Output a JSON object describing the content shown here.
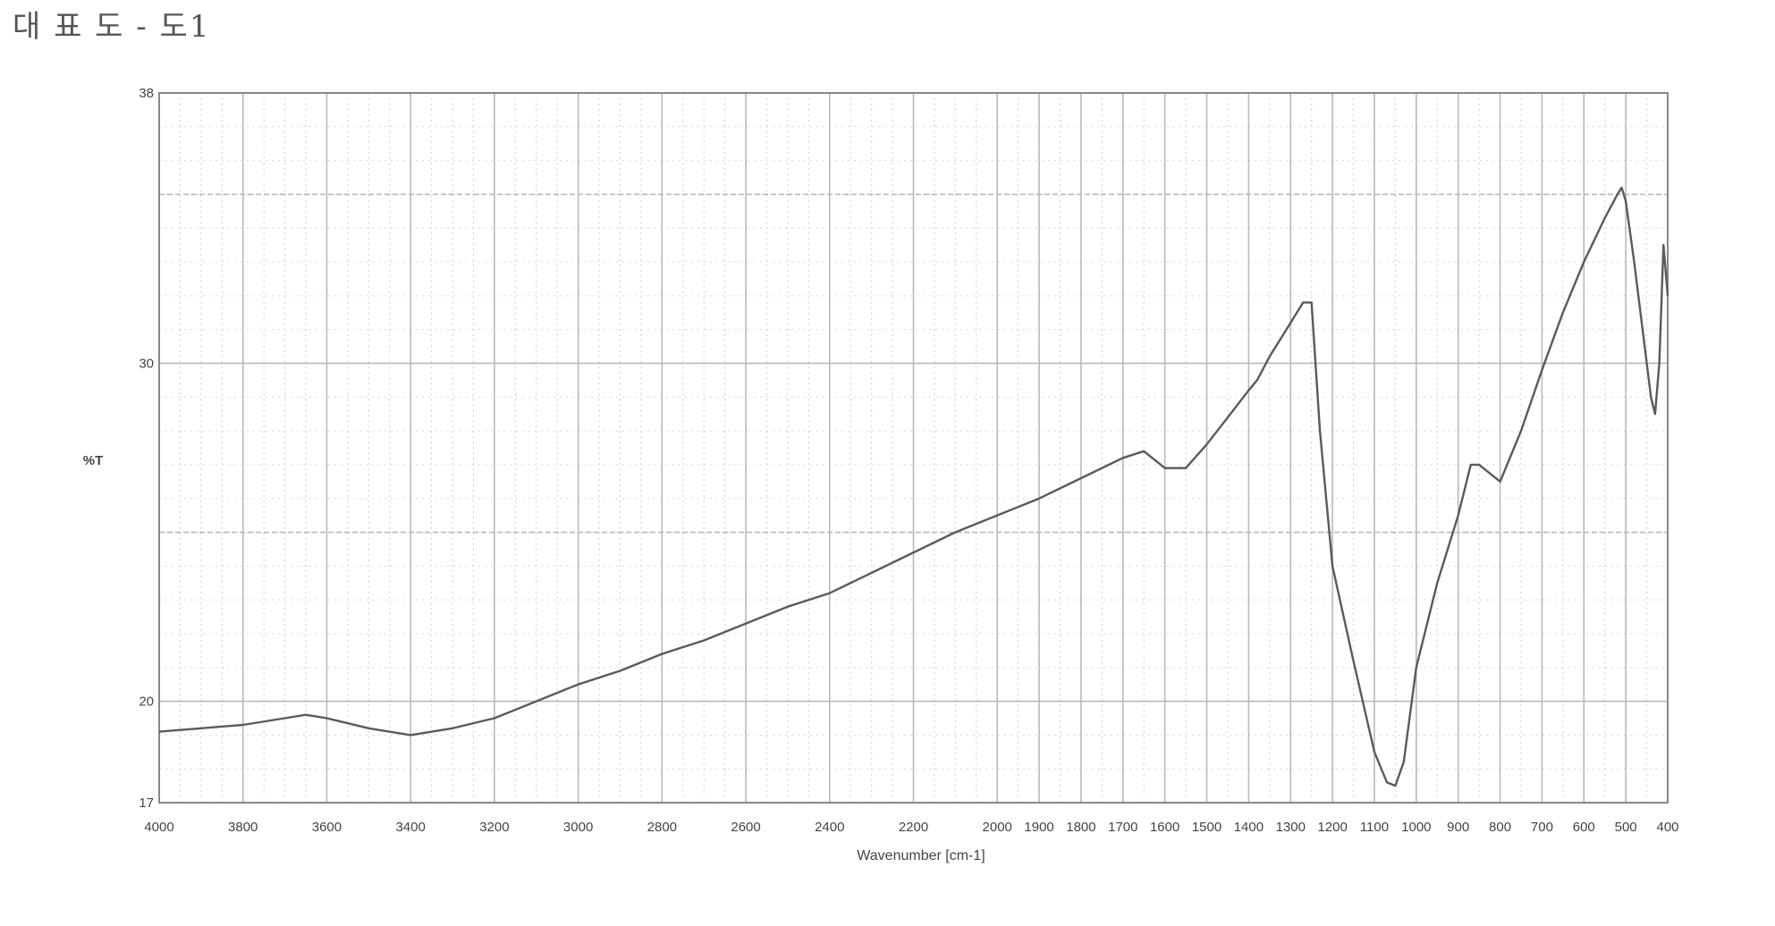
{
  "figure": {
    "title": "대 표 도 - 도1"
  },
  "chart_data": {
    "type": "line",
    "title": "",
    "xlabel": "Wavenumber [cm-1]",
    "ylabel": "%T",
    "x_ticks": [
      4000,
      3800,
      3600,
      3400,
      3200,
      3000,
      2800,
      2600,
      2400,
      2200,
      2000,
      1900,
      1800,
      1700,
      1600,
      1500,
      1400,
      1300,
      1200,
      1100,
      1000,
      900,
      800,
      700,
      600,
      500,
      400
    ],
    "y_ticks": [
      17,
      20,
      30,
      38
    ],
    "ylim": [
      17,
      38
    ],
    "x_axis": "reversed, piecewise scale (2 px-units per 100 cm-1 above 2000, 1 unit per 100 cm-1 below)",
    "grid": true,
    "colors": {
      "line": "#5a5a5a",
      "grid": "#b9b9b9",
      "frame": "#888888"
    },
    "series": [
      {
        "x": [
          4000,
          3900,
          3800,
          3700,
          3650,
          3600,
          3500,
          3400,
          3300,
          3200,
          3100,
          3000,
          2900,
          2800,
          2700,
          2600,
          2500,
          2400,
          2300,
          2200,
          2100,
          2000,
          1900,
          1800,
          1700,
          1650,
          1600,
          1550,
          1500,
          1450,
          1400,
          1380,
          1350,
          1300,
          1270,
          1250,
          1230,
          1200,
          1150,
          1100,
          1070,
          1050,
          1030,
          1000,
          950,
          900,
          870,
          850,
          800,
          750,
          700,
          650,
          600,
          550,
          520,
          510,
          500,
          480,
          460,
          450,
          440,
          430,
          420,
          410,
          400
        ],
        "y": [
          19.1,
          19.2,
          19.3,
          19.5,
          19.6,
          19.5,
          19.2,
          19.0,
          19.2,
          19.5,
          20.0,
          20.5,
          20.9,
          21.4,
          21.8,
          22.3,
          22.8,
          23.2,
          23.8,
          24.4,
          25.0,
          25.5,
          26.0,
          26.6,
          27.2,
          27.4,
          26.9,
          26.9,
          27.6,
          28.4,
          29.2,
          29.5,
          30.2,
          31.2,
          31.8,
          31.8,
          28.0,
          24.0,
          21.2,
          18.5,
          17.6,
          17.5,
          18.2,
          21.0,
          23.5,
          25.5,
          27.0,
          27.0,
          26.5,
          28.0,
          29.8,
          31.5,
          33.0,
          34.3,
          35.0,
          35.2,
          34.8,
          33.0,
          31.0,
          30.0,
          29.0,
          28.5,
          30.0,
          33.5,
          32.0
        ]
      }
    ]
  }
}
